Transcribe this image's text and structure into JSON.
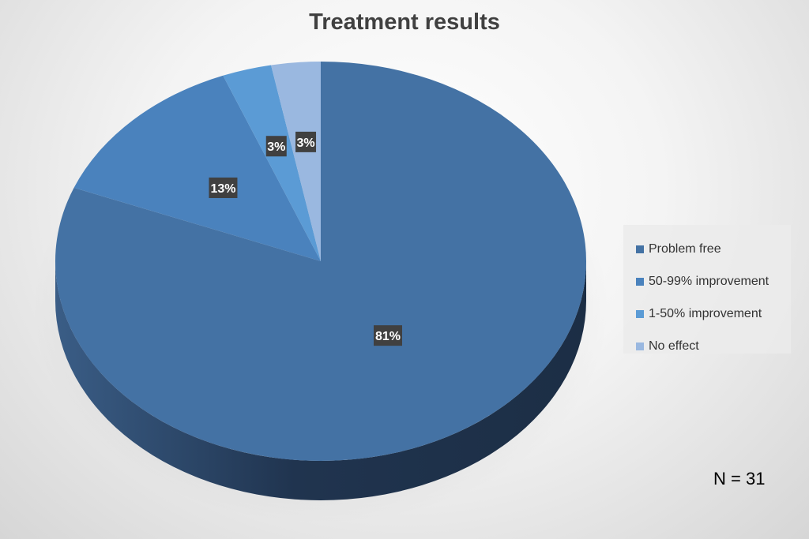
{
  "chart_data": {
    "type": "pie",
    "title": "Treatment results",
    "categories": [
      "Problem free",
      "50-99% improvement",
      "1-50% improvement",
      "No effect"
    ],
    "values": [
      81,
      13,
      3,
      3
    ],
    "data_labels": [
      "81%",
      "13%",
      "3%",
      "3%"
    ],
    "colors": [
      "#4472a4",
      "#4a82bd",
      "#5b9bd5",
      "#9ab8e0"
    ],
    "legend_position": "right",
    "annotation": "N = 31"
  }
}
